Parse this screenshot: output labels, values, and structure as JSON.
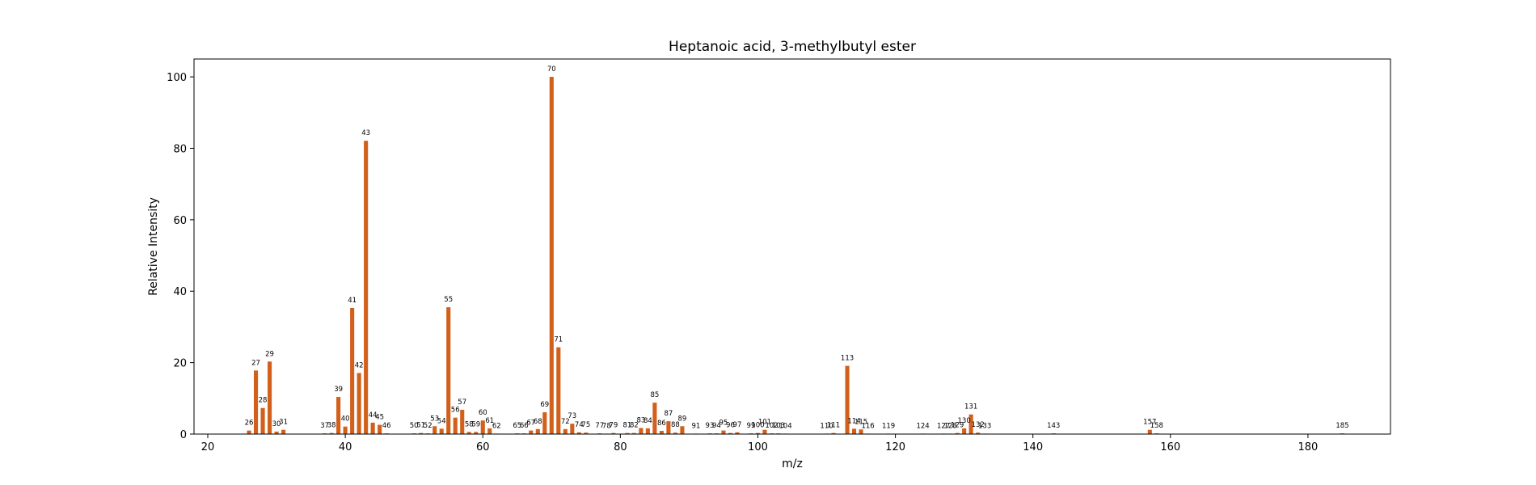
{
  "chart_data": {
    "type": "bar",
    "title": "Heptanoic acid, 3-methylbutyl ester",
    "xlabel": "m/z",
    "ylabel": "Relative Intensity",
    "xlim": [
      18,
      192
    ],
    "ylim": [
      0,
      105
    ],
    "xticks": [
      20,
      40,
      60,
      80,
      100,
      120,
      140,
      160,
      180
    ],
    "yticks": [
      0,
      20,
      40,
      60,
      80,
      100
    ],
    "grid": false,
    "bar_color": "#d2601a",
    "peaks": [
      {
        "mz": 26,
        "intensity": 1.0
      },
      {
        "mz": 27,
        "intensity": 17.8
      },
      {
        "mz": 28,
        "intensity": 7.3
      },
      {
        "mz": 29,
        "intensity": 20.3
      },
      {
        "mz": 30,
        "intensity": 0.7
      },
      {
        "mz": 31,
        "intensity": 1.2
      },
      {
        "mz": 37,
        "intensity": 0.2
      },
      {
        "mz": 38,
        "intensity": 0.3
      },
      {
        "mz": 39,
        "intensity": 10.4
      },
      {
        "mz": 40,
        "intensity": 2.1
      },
      {
        "mz": 41,
        "intensity": 35.3
      },
      {
        "mz": 42,
        "intensity": 17.1
      },
      {
        "mz": 43,
        "intensity": 82.1
      },
      {
        "mz": 44,
        "intensity": 3.2
      },
      {
        "mz": 45,
        "intensity": 2.6
      },
      {
        "mz": 46,
        "intensity": 0.2
      },
      {
        "mz": 50,
        "intensity": 0.2
      },
      {
        "mz": 51,
        "intensity": 0.3
      },
      {
        "mz": 52,
        "intensity": 0.2
      },
      {
        "mz": 53,
        "intensity": 2.2
      },
      {
        "mz": 54,
        "intensity": 1.5
      },
      {
        "mz": 55,
        "intensity": 35.5
      },
      {
        "mz": 56,
        "intensity": 4.6
      },
      {
        "mz": 57,
        "intensity": 6.8
      },
      {
        "mz": 58,
        "intensity": 0.6
      },
      {
        "mz": 59,
        "intensity": 0.6
      },
      {
        "mz": 60,
        "intensity": 3.8
      },
      {
        "mz": 61,
        "intensity": 1.6
      },
      {
        "mz": 62,
        "intensity": 0.1
      },
      {
        "mz": 65,
        "intensity": 0.2
      },
      {
        "mz": 66,
        "intensity": 0.2
      },
      {
        "mz": 67,
        "intensity": 1.0
      },
      {
        "mz": 68,
        "intensity": 1.4
      },
      {
        "mz": 69,
        "intensity": 6.1
      },
      {
        "mz": 70,
        "intensity": 100
      },
      {
        "mz": 71,
        "intensity": 24.3
      },
      {
        "mz": 72,
        "intensity": 1.4
      },
      {
        "mz": 73,
        "intensity": 2.9
      },
      {
        "mz": 74,
        "intensity": 0.5
      },
      {
        "mz": 75,
        "intensity": 0.4
      },
      {
        "mz": 77,
        "intensity": 0.2
      },
      {
        "mz": 78,
        "intensity": 0.1
      },
      {
        "mz": 79,
        "intensity": 0.3
      },
      {
        "mz": 81,
        "intensity": 0.3
      },
      {
        "mz": 82,
        "intensity": 0.3
      },
      {
        "mz": 83,
        "intensity": 1.7
      },
      {
        "mz": 84,
        "intensity": 1.6
      },
      {
        "mz": 85,
        "intensity": 8.8
      },
      {
        "mz": 86,
        "intensity": 0.9
      },
      {
        "mz": 87,
        "intensity": 3.6
      },
      {
        "mz": 88,
        "intensity": 0.4
      },
      {
        "mz": 89,
        "intensity": 2.2
      },
      {
        "mz": 91,
        "intensity": 0.1
      },
      {
        "mz": 93,
        "intensity": 0.2
      },
      {
        "mz": 94,
        "intensity": 0.2
      },
      {
        "mz": 95,
        "intensity": 1.0
      },
      {
        "mz": 96,
        "intensity": 0.3
      },
      {
        "mz": 97,
        "intensity": 0.5
      },
      {
        "mz": 99,
        "intensity": 0.2
      },
      {
        "mz": 100,
        "intensity": 0.3
      },
      {
        "mz": 101,
        "intensity": 1.2
      },
      {
        "mz": 102,
        "intensity": 0.2
      },
      {
        "mz": 103,
        "intensity": 0.2
      },
      {
        "mz": 104,
        "intensity": 0.1
      },
      {
        "mz": 110,
        "intensity": 0.1
      },
      {
        "mz": 111,
        "intensity": 0.3
      },
      {
        "mz": 113,
        "intensity": 19.1
      },
      {
        "mz": 114,
        "intensity": 1.5
      },
      {
        "mz": 115,
        "intensity": 1.3
      },
      {
        "mz": 116,
        "intensity": 0.1
      },
      {
        "mz": 119,
        "intensity": 0.1
      },
      {
        "mz": 124,
        "intensity": 0.1
      },
      {
        "mz": 127,
        "intensity": 0.1
      },
      {
        "mz": 128,
        "intensity": 0.1
      },
      {
        "mz": 129,
        "intensity": 0.3
      },
      {
        "mz": 130,
        "intensity": 1.6
      },
      {
        "mz": 131,
        "intensity": 5.5
      },
      {
        "mz": 132,
        "intensity": 0.4
      },
      {
        "mz": 133,
        "intensity": 0.1
      },
      {
        "mz": 143,
        "intensity": 0.2
      },
      {
        "mz": 157,
        "intensity": 1.2
      },
      {
        "mz": 158,
        "intensity": 0.2
      },
      {
        "mz": 185,
        "intensity": 0.2
      }
    ]
  }
}
